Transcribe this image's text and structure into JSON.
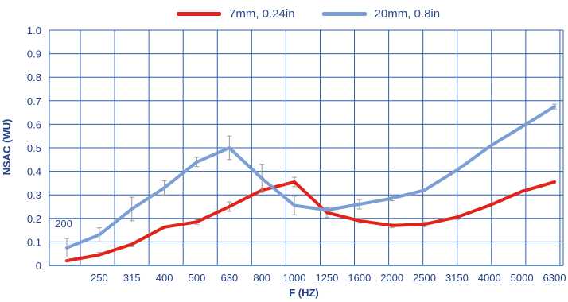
{
  "chart_data": {
    "type": "line",
    "xlabel": "F (HZ)",
    "ylabel": "NSAC (WU)",
    "ylim": [
      0,
      1.0
    ],
    "yticks": [
      "0",
      "0.1",
      "0.2",
      "0.3",
      "0.4",
      "0.5",
      "0.6",
      "0.7",
      "0.8",
      "0.9",
      "1.0"
    ],
    "categories": [
      "200",
      "250",
      "315",
      "400",
      "500",
      "630",
      "800",
      "1000",
      "1250",
      "1600",
      "2000",
      "2500",
      "3150",
      "4000",
      "5000",
      "6300"
    ],
    "grid": true,
    "legend_position": "top-center",
    "series": [
      {
        "name": "7mm, 0.24in",
        "color": "#e2231a",
        "values": [
          0.02,
          0.045,
          0.09,
          0.163,
          0.185,
          0.25,
          0.32,
          0.355,
          0.225,
          0.19,
          0.17,
          0.175,
          0.205,
          0.255,
          0.315,
          0.355
        ],
        "errors": [
          null,
          0.01,
          0.01,
          null,
          0.01,
          0.02,
          null,
          0.02,
          0.02,
          0.01,
          0.01,
          0.01,
          0.01,
          null,
          null,
          null
        ]
      },
      {
        "name": "20mm, 0.8in",
        "color": "#7a9fd4",
        "values": [
          0.075,
          0.13,
          0.24,
          0.33,
          0.44,
          0.5,
          0.37,
          0.255,
          0.235,
          0.26,
          0.285,
          0.32,
          0.405,
          0.505,
          0.59,
          0.675
        ],
        "errors": [
          0.04,
          0.03,
          0.05,
          0.03,
          0.02,
          0.05,
          0.06,
          0.04,
          null,
          0.02,
          0.01,
          null,
          null,
          null,
          null,
          0.01
        ]
      }
    ]
  }
}
